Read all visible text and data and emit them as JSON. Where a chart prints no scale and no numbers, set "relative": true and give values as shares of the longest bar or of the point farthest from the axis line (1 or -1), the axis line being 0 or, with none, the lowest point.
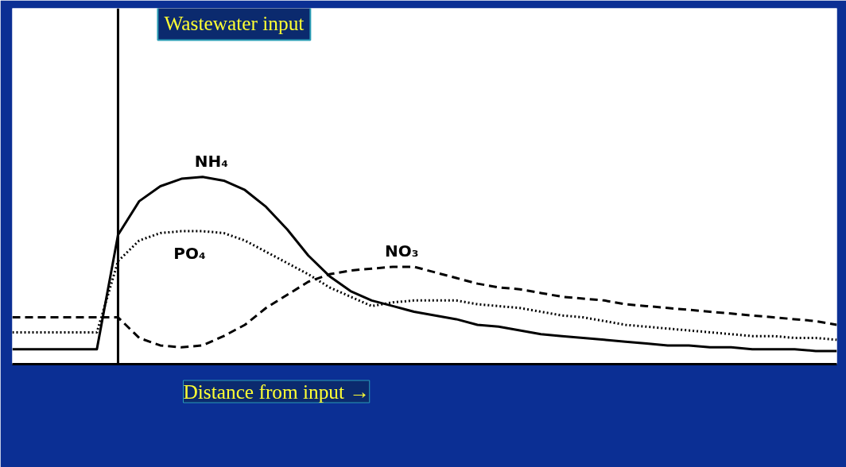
{
  "chart_data": {
    "type": "line",
    "relative": true,
    "xlabel": "Distance from input →",
    "annotations": [
      "Wastewater input"
    ],
    "categories": [
      null,
      null,
      null,
      null,
      null,
      null,
      null,
      null,
      null,
      null,
      null,
      null,
      null,
      null,
      null,
      null,
      null,
      null,
      null,
      null,
      null,
      null,
      null,
      null,
      null,
      null,
      null,
      null,
      null,
      null,
      null,
      null,
      null,
      null,
      null,
      null,
      null,
      null,
      null,
      null
    ],
    "series": [
      {
        "name": "NH₄",
        "color": "#000000",
        "line_style": "solid",
        "values": [
          0.08,
          0.08,
          0.08,
          0.08,
          0.08,
          0.69,
          0.87,
          0.95,
          0.99,
          1.0,
          0.98,
          0.93,
          0.84,
          0.72,
          0.58,
          0.47,
          0.39,
          0.34,
          0.31,
          0.28,
          0.26,
          0.24,
          0.21,
          0.2,
          0.18,
          0.16,
          0.15,
          0.14,
          0.13,
          0.12,
          0.11,
          0.1,
          0.1,
          0.09,
          0.09,
          0.08,
          0.08,
          0.08,
          0.07,
          0.07
        ]
      },
      {
        "name": "PO₄",
        "color": "#000000",
        "line_style": "dotted",
        "values": [
          0.17,
          0.17,
          0.17,
          0.17,
          0.17,
          0.55,
          0.66,
          0.7,
          0.71,
          0.71,
          0.7,
          0.66,
          0.6,
          0.54,
          0.48,
          0.41,
          0.36,
          0.31,
          0.33,
          0.34,
          0.34,
          0.34,
          0.32,
          0.31,
          0.3,
          0.28,
          0.26,
          0.25,
          0.23,
          0.21,
          0.2,
          0.19,
          0.18,
          0.17,
          0.16,
          0.15,
          0.15,
          0.14,
          0.14,
          0.13
        ]
      },
      {
        "name": "NO₃",
        "color": "#000000",
        "line_style": "dashed",
        "values": [
          0.25,
          0.25,
          0.25,
          0.25,
          0.25,
          0.25,
          0.14,
          0.1,
          0.09,
          0.1,
          0.15,
          0.21,
          0.3,
          0.37,
          0.44,
          0.48,
          0.5,
          0.51,
          0.52,
          0.52,
          0.49,
          0.46,
          0.43,
          0.41,
          0.4,
          0.38,
          0.36,
          0.35,
          0.34,
          0.32,
          0.31,
          0.3,
          0.29,
          0.28,
          0.27,
          0.26,
          0.25,
          0.24,
          0.23,
          0.21
        ]
      }
    ]
  }
}
